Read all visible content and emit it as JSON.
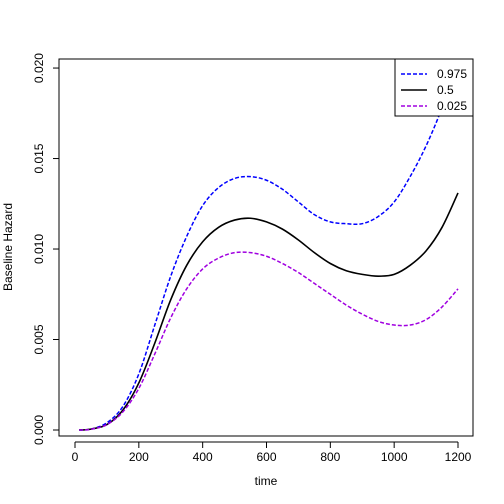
{
  "chart_data": {
    "type": "line",
    "title": "",
    "xlabel": "time",
    "ylabel": "Baseline Hazard",
    "xlim": [
      0,
      1200
    ],
    "ylim": [
      0,
      0.0205
    ],
    "xticks": [
      0,
      200,
      400,
      600,
      800,
      1000,
      1200
    ],
    "xtick_labels": [
      "0",
      "200",
      "400",
      "600",
      "800",
      "1000",
      "1200"
    ],
    "yticks": [
      0,
      0.005,
      0.01,
      0.015,
      0.02
    ],
    "ytick_labels": [
      "0.000",
      "0.005",
      "0.010",
      "0.015",
      "0.020"
    ],
    "grid": false,
    "legend_position": "top-right",
    "series": [
      {
        "name": "0.975",
        "color": "#0000ff",
        "dash": "dashed",
        "x": [
          13,
          50,
          100,
          150,
          200,
          250,
          300,
          350,
          400,
          450,
          500,
          550,
          600,
          650,
          700,
          750,
          800,
          850,
          900,
          950,
          1000,
          1050,
          1100,
          1150,
          1200
        ],
        "values": [
          0.0,
          5e-05,
          0.0004,
          0.0013,
          0.0031,
          0.0058,
          0.0085,
          0.0107,
          0.0124,
          0.0134,
          0.0139,
          0.014,
          0.0138,
          0.0133,
          0.0126,
          0.0119,
          0.0115,
          0.0114,
          0.0114,
          0.0118,
          0.0126,
          0.014,
          0.0157,
          0.0178,
          0.0203
        ]
      },
      {
        "name": "0.5",
        "color": "#000000",
        "dash": "solid",
        "x": [
          13,
          50,
          100,
          150,
          200,
          250,
          300,
          350,
          400,
          450,
          500,
          550,
          600,
          650,
          700,
          750,
          800,
          850,
          900,
          950,
          1000,
          1050,
          1100,
          1150,
          1200
        ],
        "values": [
          0.0,
          5e-05,
          0.0003,
          0.0011,
          0.0026,
          0.0048,
          0.0072,
          0.0091,
          0.0104,
          0.0112,
          0.0116,
          0.0117,
          0.0115,
          0.0111,
          0.0105,
          0.0098,
          0.0092,
          0.0088,
          0.0086,
          0.0085,
          0.0086,
          0.0091,
          0.0099,
          0.0112,
          0.0131
        ]
      },
      {
        "name": "0.025",
        "color": "#a000e0",
        "dash": "dashed",
        "x": [
          13,
          50,
          100,
          150,
          200,
          250,
          300,
          350,
          400,
          450,
          500,
          550,
          600,
          650,
          700,
          750,
          800,
          850,
          900,
          950,
          1000,
          1050,
          1100,
          1150,
          1200
        ],
        "values": [
          0.0,
          4e-05,
          0.0003,
          0.001,
          0.0023,
          0.0042,
          0.0062,
          0.0078,
          0.0089,
          0.0095,
          0.0098,
          0.0098,
          0.0096,
          0.0092,
          0.0087,
          0.0081,
          0.0075,
          0.0069,
          0.0064,
          0.006,
          0.0058,
          0.0058,
          0.0061,
          0.0068,
          0.0078
        ]
      }
    ]
  }
}
